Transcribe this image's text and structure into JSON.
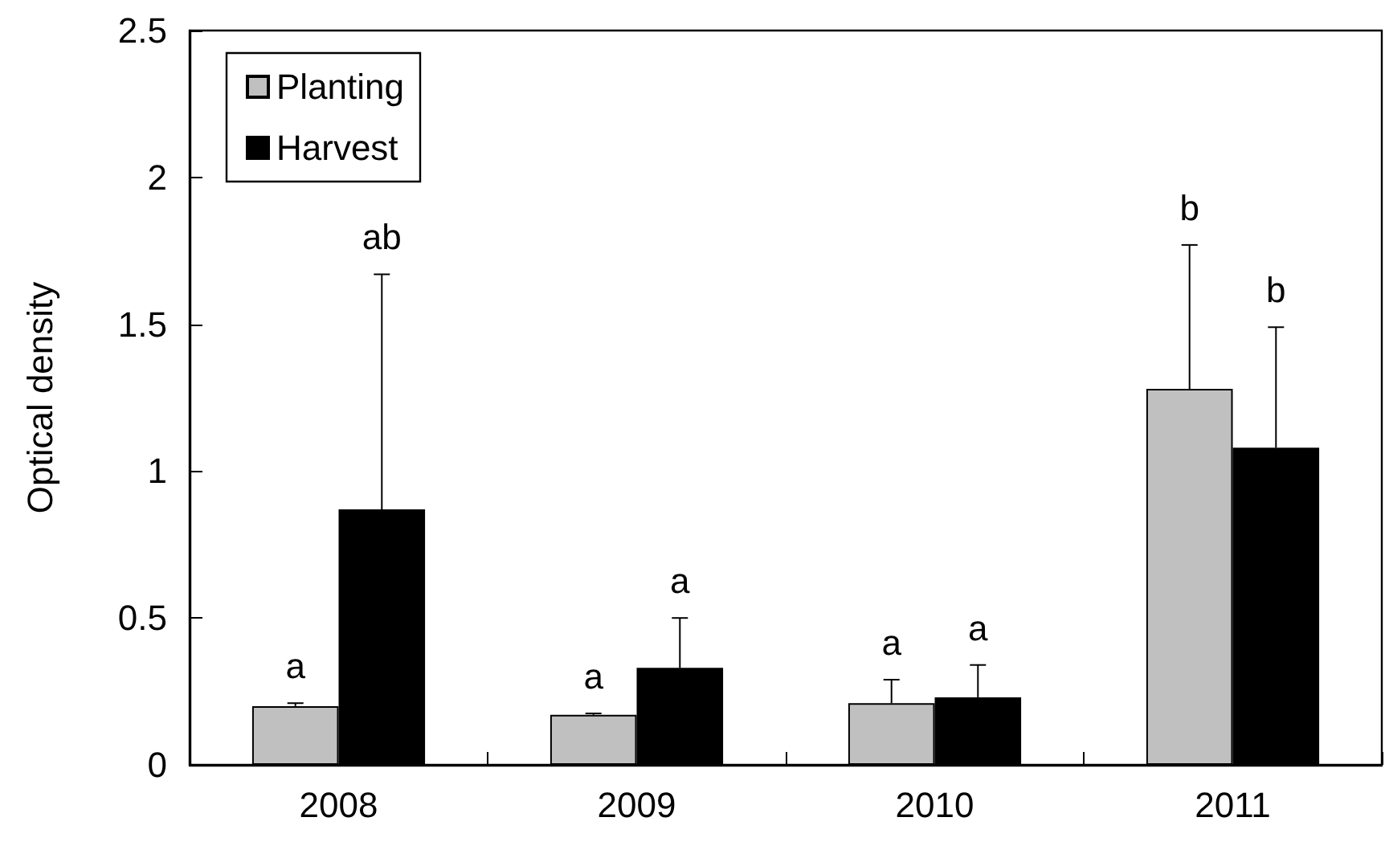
{
  "chart_data": {
    "type": "bar",
    "ylabel": "Optical density",
    "categories": [
      "2008",
      "2009",
      "2010",
      "2011"
    ],
    "series": [
      {
        "name": "Planting",
        "color": "#c0c0c0",
        "values": [
          0.2,
          0.17,
          0.21,
          1.28
        ],
        "errors": [
          [
            0.2,
            0.21
          ],
          [
            0.17,
            0.175
          ],
          [
            0.21,
            0.29
          ],
          [
            1.28,
            1.77
          ]
        ]
      },
      {
        "name": "Harvest",
        "color": "#000000",
        "values": [
          0.87,
          0.33,
          0.23,
          1.08
        ],
        "errors": [
          [
            0.87,
            1.67
          ],
          [
            0.33,
            0.5
          ],
          [
            0.23,
            0.34
          ],
          [
            1.08,
            1.49
          ]
        ]
      }
    ],
    "annotations": [
      "a",
      "ab",
      "a",
      "a",
      "a",
      "a",
      "b",
      "b"
    ],
    "ylim": [
      0,
      2.5
    ],
    "yticks": [
      0,
      0.5,
      1,
      1.5,
      2,
      2.5
    ],
    "grid": false,
    "legend": "top left"
  }
}
